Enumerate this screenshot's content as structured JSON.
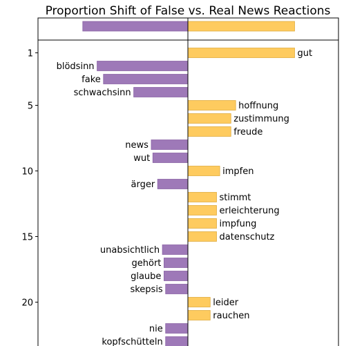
{
  "chart_data": {
    "type": "bar",
    "orientation": "horizontal",
    "title": "Proportion Shift of False vs. Real News Reactions",
    "xlabel": "",
    "ylabel": "",
    "xlim": [
      -1,
      1
    ],
    "y_ticks": [
      "1",
      "5",
      "10",
      "15",
      "20"
    ],
    "summary_bar": {
      "false_value": -0.66,
      "real_value": 0.67
    },
    "items": [
      {
        "rank": 1,
        "word": "gut",
        "value": 0.67
      },
      {
        "rank": 2,
        "word": "blödsinn",
        "value": -0.57
      },
      {
        "rank": 3,
        "word": "fake",
        "value": -0.53
      },
      {
        "rank": 4,
        "word": "schwachsinn",
        "value": -0.34
      },
      {
        "rank": 5,
        "word": "hoffnung",
        "value": 0.3
      },
      {
        "rank": 6,
        "word": "zustimmung",
        "value": 0.27
      },
      {
        "rank": 7,
        "word": "freude",
        "value": 0.27
      },
      {
        "rank": 8,
        "word": "news",
        "value": -0.23
      },
      {
        "rank": 9,
        "word": "wut",
        "value": -0.22
      },
      {
        "rank": 10,
        "word": "impfen",
        "value": 0.2
      },
      {
        "rank": 11,
        "word": "ärger",
        "value": -0.19
      },
      {
        "rank": 12,
        "word": "stimmt",
        "value": 0.18
      },
      {
        "rank": 13,
        "word": "erleichterung",
        "value": 0.18
      },
      {
        "rank": 14,
        "word": "impfung",
        "value": 0.18
      },
      {
        "rank": 15,
        "word": "datenschutz",
        "value": 0.18
      },
      {
        "rank": 16,
        "word": "unabsichtlich",
        "value": -0.16
      },
      {
        "rank": 17,
        "word": "gehört",
        "value": -0.15
      },
      {
        "rank": 18,
        "word": "glaube",
        "value": -0.15
      },
      {
        "rank": 19,
        "word": "skepsis",
        "value": -0.14
      },
      {
        "rank": 20,
        "word": "leider",
        "value": 0.14
      },
      {
        "rank": 21,
        "word": "rauchen",
        "value": 0.14
      },
      {
        "rank": 22,
        "word": "nie",
        "value": -0.14
      },
      {
        "rank": 23,
        "word": "kopfschütteln",
        "value": -0.14
      }
    ],
    "colors": {
      "false": "#9e79b8",
      "real": "#fecb5f",
      "false_edge": "#8a64a6",
      "real_edge": "#e0ac3f"
    },
    "grid": false,
    "legend": "none"
  }
}
